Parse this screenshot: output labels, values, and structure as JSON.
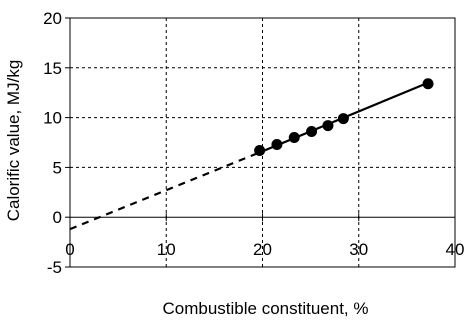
{
  "chart_data": {
    "type": "line",
    "title": "",
    "xlabel": "Combustible constituent, %",
    "ylabel": "Calorific value, MJ/kg",
    "xlim": [
      0,
      40
    ],
    "ylim": [
      -5,
      20
    ],
    "xticks": [
      0,
      10,
      20,
      30,
      40
    ],
    "yticks": [
      -5,
      0,
      5,
      10,
      15,
      20
    ],
    "grid": true,
    "legend": "none",
    "series": [
      {
        "style": "markers",
        "x": [
          19.7,
          21.5,
          23.3,
          25.1,
          26.8,
          28.4,
          37.2
        ],
        "y": [
          6.7,
          7.3,
          8.0,
          8.6,
          9.2,
          9.9,
          13.4
        ]
      },
      {
        "style": "solid",
        "x": [
          19.7,
          37.2
        ],
        "y": [
          6.5,
          13.5
        ]
      },
      {
        "style": "dashed",
        "x": [
          0,
          19.7
        ],
        "y": [
          -1.2,
          6.5
        ]
      }
    ]
  }
}
